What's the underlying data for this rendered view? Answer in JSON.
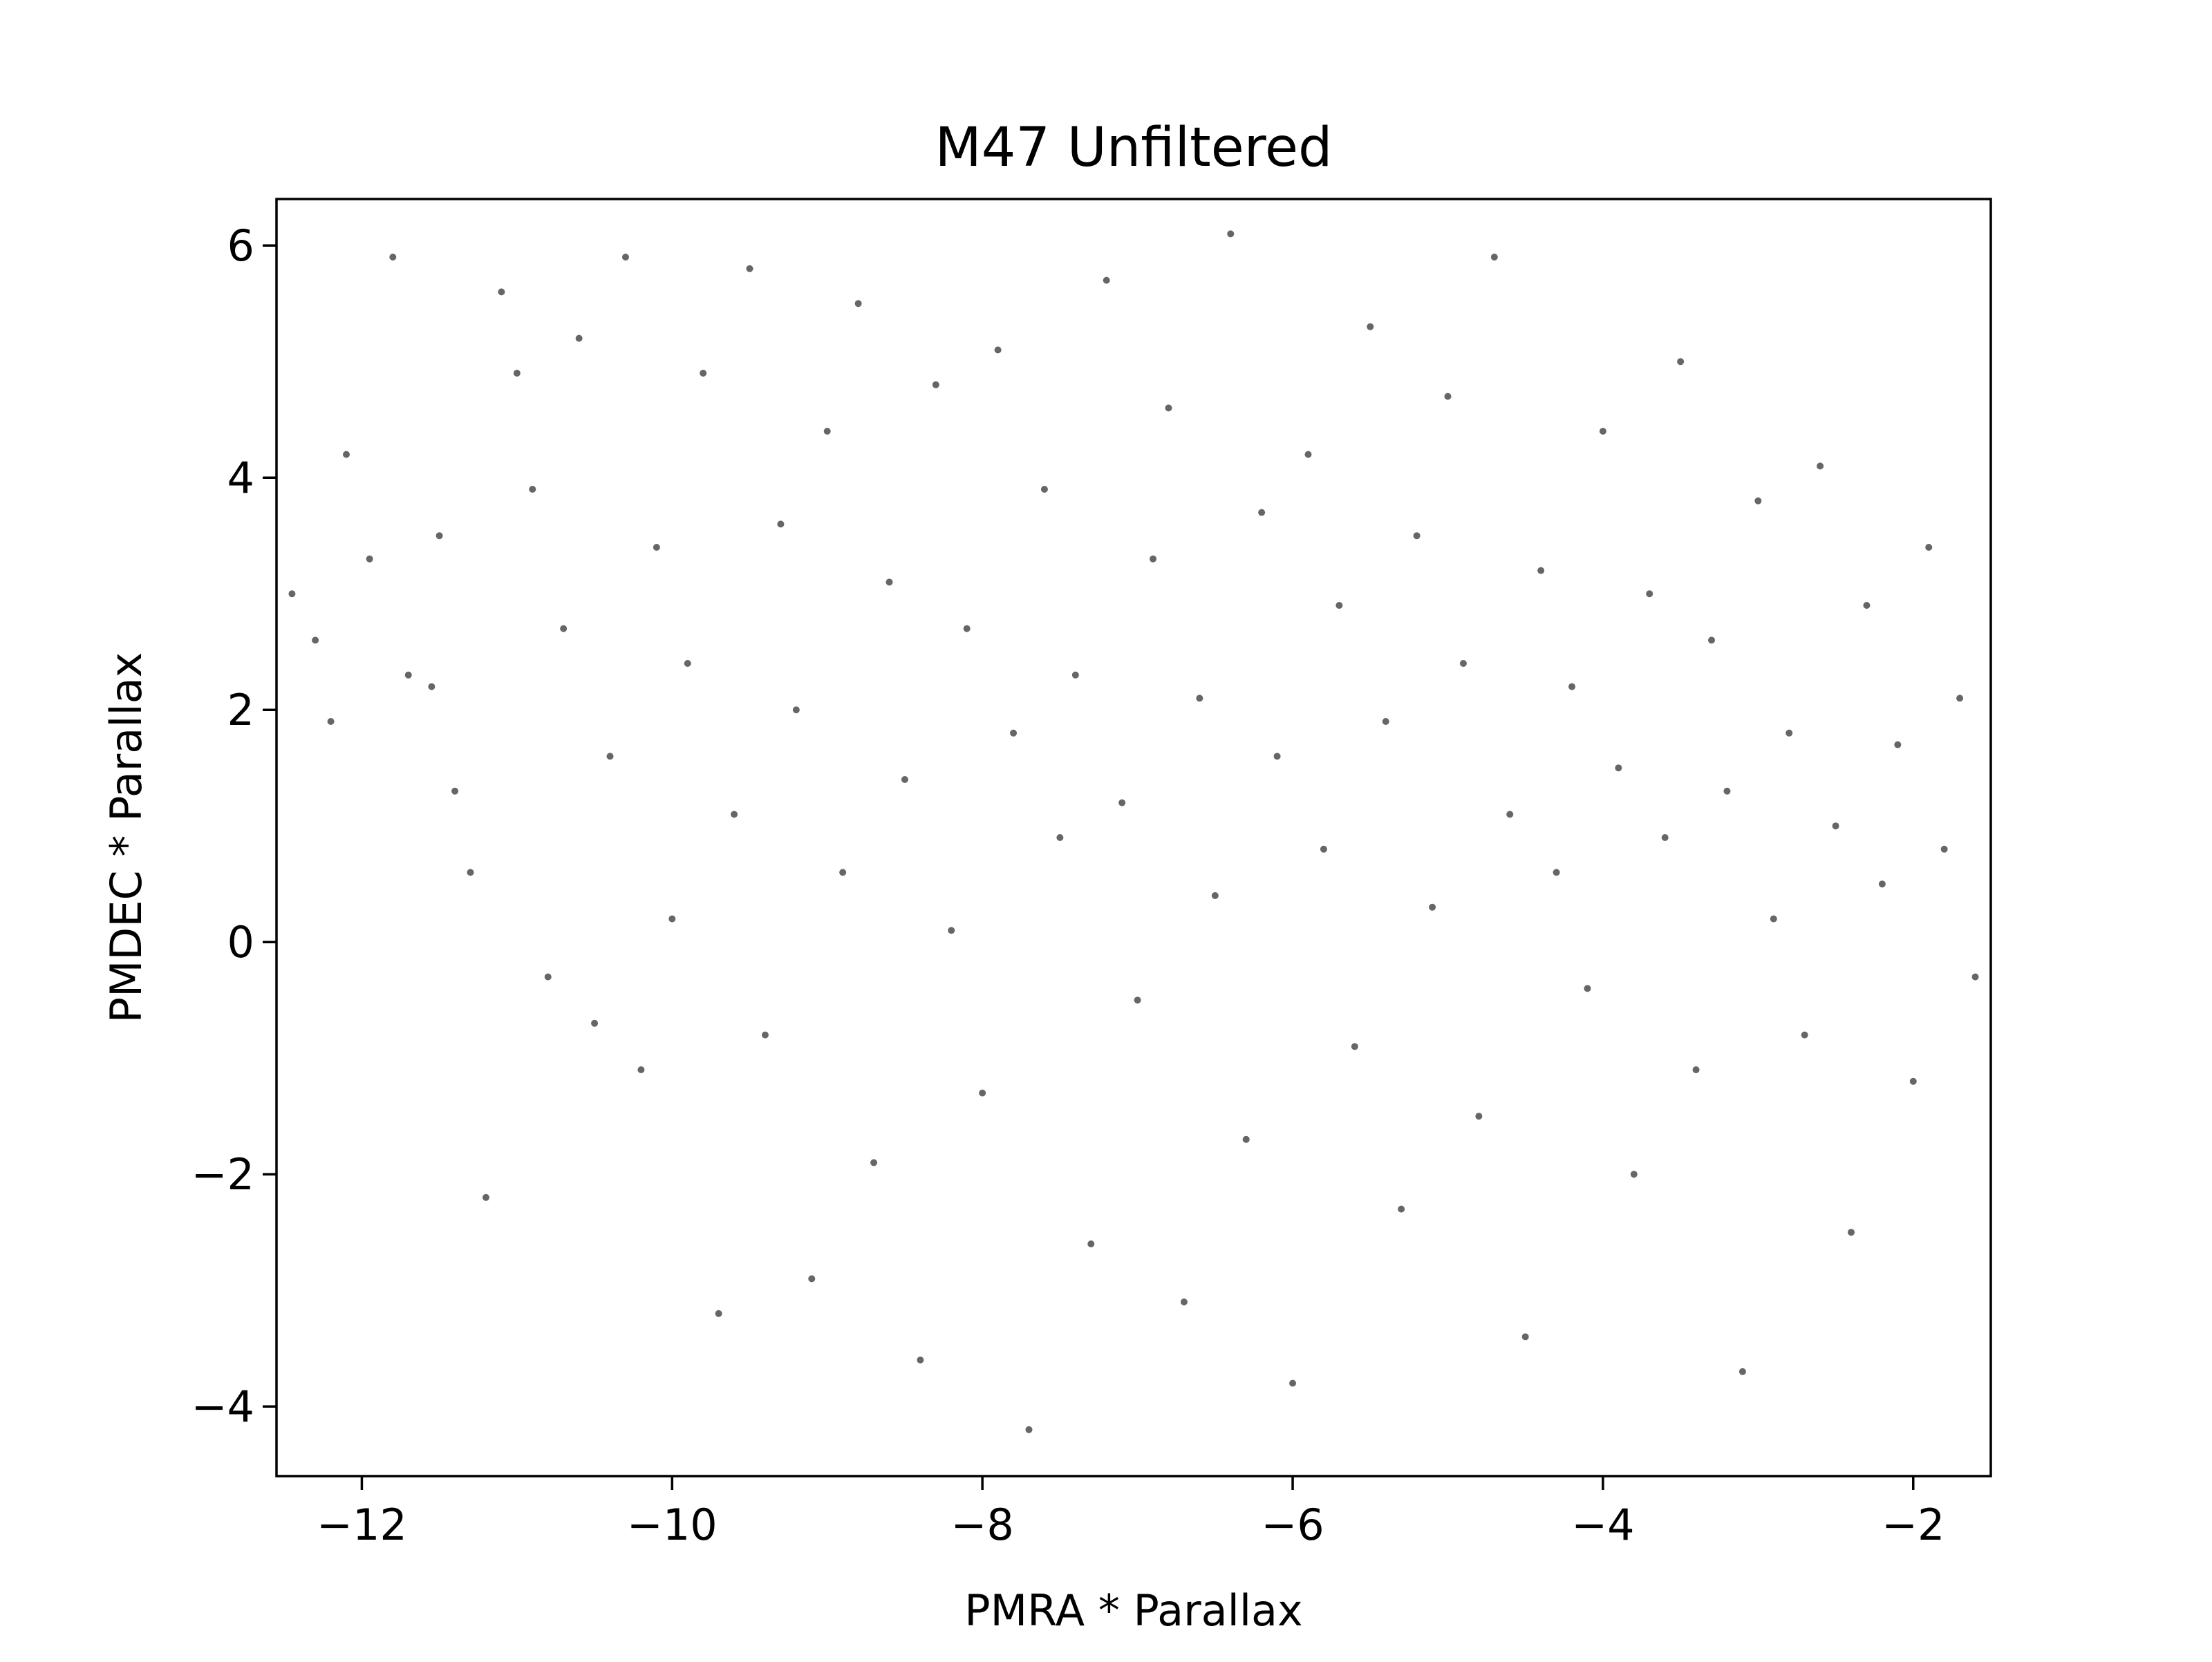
{
  "chart_data": {
    "type": "scatter",
    "title": "M47 Unfiltered",
    "xlabel": "PMRA * Parallax",
    "ylabel": "PMDEC * Parallax",
    "xlim": [
      -12.55,
      -1.5
    ],
    "ylim": [
      -4.6,
      6.4
    ],
    "x_ticks": [
      -12,
      -10,
      -8,
      -6,
      -4,
      -2
    ],
    "y_ticks": [
      -4,
      -2,
      0,
      2,
      4,
      6
    ],
    "x_tick_labels": [
      "−12",
      "−10",
      "−8",
      "−6",
      "−4",
      "−2"
    ],
    "y_tick_labels": [
      "−4",
      "−2",
      "0",
      "2",
      "4",
      "6"
    ],
    "grid": false,
    "legend": "none",
    "marker_color": "#666666",
    "series": [
      {
        "points": [
          [
            -12.45,
            3.0
          ],
          [
            -12.3,
            2.6
          ],
          [
            -12.2,
            1.9
          ],
          [
            -12.1,
            4.2
          ],
          [
            -11.95,
            3.3
          ],
          [
            -11.8,
            5.9
          ],
          [
            -11.7,
            2.3
          ],
          [
            -11.55,
            2.2
          ],
          [
            -11.5,
            3.5
          ],
          [
            -11.4,
            1.3
          ],
          [
            -11.3,
            0.6
          ],
          [
            -11.2,
            -2.2
          ],
          [
            -11.1,
            5.6
          ],
          [
            -11.0,
            4.9
          ],
          [
            -10.9,
            3.9
          ],
          [
            -10.8,
            -0.3
          ],
          [
            -10.7,
            2.7
          ],
          [
            -10.6,
            5.2
          ],
          [
            -10.5,
            -0.7
          ],
          [
            -10.4,
            1.6
          ],
          [
            -10.3,
            5.9
          ],
          [
            -10.2,
            -1.1
          ],
          [
            -10.1,
            3.4
          ],
          [
            -10.0,
            0.2
          ],
          [
            -9.9,
            2.4
          ],
          [
            -9.8,
            4.9
          ],
          [
            -9.7,
            -3.2
          ],
          [
            -9.6,
            1.1
          ],
          [
            -9.5,
            5.8
          ],
          [
            -9.4,
            -0.8
          ],
          [
            -9.3,
            3.6
          ],
          [
            -9.2,
            2.0
          ],
          [
            -9.1,
            -2.9
          ],
          [
            -9.0,
            4.4
          ],
          [
            -8.9,
            0.6
          ],
          [
            -8.8,
            5.5
          ],
          [
            -8.7,
            -1.9
          ],
          [
            -8.6,
            3.1
          ],
          [
            -8.5,
            1.4
          ],
          [
            -8.4,
            -3.6
          ],
          [
            -8.3,
            4.8
          ],
          [
            -8.2,
            0.1
          ],
          [
            -8.1,
            2.7
          ],
          [
            -8.0,
            -1.3
          ],
          [
            -7.9,
            5.1
          ],
          [
            -7.8,
            1.8
          ],
          [
            -7.7,
            -4.2
          ],
          [
            -7.6,
            3.9
          ],
          [
            -7.5,
            0.9
          ],
          [
            -7.4,
            2.3
          ],
          [
            -7.3,
            -2.6
          ],
          [
            -7.2,
            5.7
          ],
          [
            -7.1,
            1.2
          ],
          [
            -7.0,
            -0.5
          ],
          [
            -6.9,
            3.3
          ],
          [
            -6.8,
            4.6
          ],
          [
            -6.7,
            -3.1
          ],
          [
            -6.6,
            2.1
          ],
          [
            -6.5,
            0.4
          ],
          [
            -6.4,
            6.1
          ],
          [
            -6.3,
            -1.7
          ],
          [
            -6.2,
            3.7
          ],
          [
            -6.1,
            1.6
          ],
          [
            -6.0,
            -3.8
          ],
          [
            -5.9,
            4.2
          ],
          [
            -5.8,
            0.8
          ],
          [
            -5.7,
            2.9
          ],
          [
            -5.6,
            -0.9
          ],
          [
            -5.5,
            5.3
          ],
          [
            -5.4,
            1.9
          ],
          [
            -5.3,
            -2.3
          ],
          [
            -5.2,
            3.5
          ],
          [
            -5.1,
            0.3
          ],
          [
            -5.0,
            4.7
          ],
          [
            -4.9,
            2.4
          ],
          [
            -4.8,
            -1.5
          ],
          [
            -4.7,
            5.9
          ],
          [
            -4.6,
            1.1
          ],
          [
            -4.5,
            -3.4
          ],
          [
            -4.4,
            3.2
          ],
          [
            -4.3,
            0.6
          ],
          [
            -4.2,
            2.2
          ],
          [
            -4.1,
            -0.4
          ],
          [
            -4.0,
            4.4
          ],
          [
            -3.9,
            1.5
          ],
          [
            -3.8,
            -2.0
          ],
          [
            -3.7,
            3.0
          ],
          [
            -3.6,
            0.9
          ],
          [
            -3.5,
            5.0
          ],
          [
            -3.4,
            -1.1
          ],
          [
            -3.3,
            2.6
          ],
          [
            -3.2,
            1.3
          ],
          [
            -3.1,
            -3.7
          ],
          [
            -3.0,
            3.8
          ],
          [
            -2.9,
            0.2
          ],
          [
            -2.8,
            1.8
          ],
          [
            -2.7,
            -0.8
          ],
          [
            -2.6,
            4.1
          ],
          [
            -2.5,
            1.0
          ],
          [
            -2.4,
            -2.5
          ],
          [
            -2.3,
            2.9
          ],
          [
            -2.2,
            0.5
          ],
          [
            -2.1,
            1.7
          ],
          [
            -2.0,
            -1.2
          ],
          [
            -1.9,
            3.4
          ],
          [
            -1.8,
            0.8
          ],
          [
            -1.7,
            2.1
          ],
          [
            -1.6,
            -0.3
          ]
        ]
      }
    ]
  }
}
